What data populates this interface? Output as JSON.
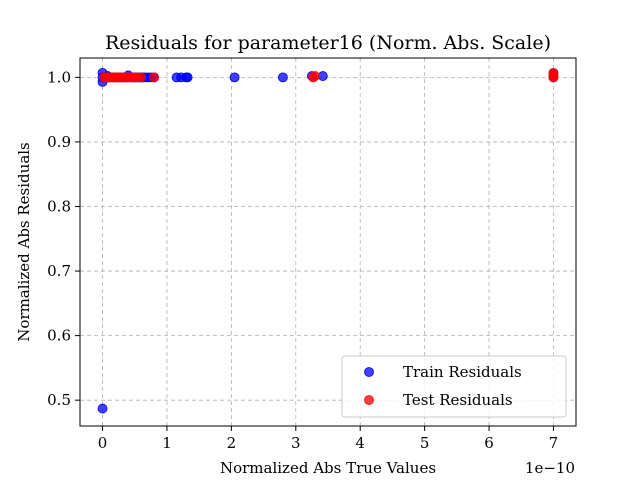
{
  "chart_data": {
    "type": "scatter",
    "title": "Residuals for parameter16 (Norm. Abs. Scale)",
    "xlabel": "Normalized Abs True Values",
    "ylabel": "Normalized Abs Residuals",
    "x_offset_text": "1e−10",
    "xlim": [
      -0.35,
      7.35
    ],
    "ylim": [
      0.46,
      1.03
    ],
    "x_ticks": [
      0,
      1,
      2,
      3,
      4,
      5,
      6,
      7
    ],
    "x_tick_labels": [
      "0",
      "1",
      "2",
      "3",
      "4",
      "5",
      "6",
      "7"
    ],
    "y_ticks": [
      0.5,
      0.6,
      0.7,
      0.8,
      0.9,
      1.0
    ],
    "y_tick_labels": [
      "0.5",
      "0.6",
      "0.7",
      "0.8",
      "0.9",
      "1.0"
    ],
    "grid": true,
    "legend_position": "lower-right",
    "series": [
      {
        "name": "Train Residuals",
        "color": "#0000ff",
        "x": [
          0.0,
          0.0,
          0.0,
          0.0,
          0.02,
          0.05,
          0.08,
          0.1,
          0.12,
          0.15,
          0.18,
          0.2,
          0.22,
          0.25,
          0.28,
          0.3,
          0.33,
          0.35,
          0.38,
          0.4,
          0.42,
          0.45,
          0.48,
          0.5,
          0.52,
          0.55,
          0.58,
          0.6,
          0.62,
          0.65,
          0.7,
          0.75,
          0.8,
          1.15,
          1.22,
          1.3,
          1.32,
          2.05,
          2.8,
          3.25,
          3.42,
          7.0,
          7.0,
          7.0
        ],
        "y": [
          0.487,
          0.993,
          1.0,
          1.007,
          1.0,
          1.0,
          1.002,
          1.0,
          1.0,
          1.0,
          1.0,
          1.0,
          1.0,
          1.0,
          1.0,
          1.0,
          1.0,
          1.0,
          1.0,
          1.003,
          1.0,
          1.0,
          1.0,
          1.0,
          1.0,
          1.0,
          1.0,
          1.0,
          1.0,
          1.0,
          1.0,
          1.0,
          1.0,
          1.0,
          1.0,
          1.0,
          1.0,
          1.0,
          1.0,
          1.002,
          1.002,
          1.0,
          1.003,
          1.006
        ]
      },
      {
        "name": "Test Residuals",
        "color": "#ff0000",
        "x": [
          0.02,
          0.05,
          0.08,
          0.1,
          0.12,
          0.15,
          0.18,
          0.2,
          0.23,
          0.25,
          0.28,
          0.3,
          0.35,
          0.4,
          0.45,
          0.5,
          0.55,
          0.6,
          0.8,
          3.27,
          3.3,
          7.0,
          7.0,
          7.0
        ],
        "y": [
          1.0,
          1.0,
          1.0,
          1.0,
          1.0,
          1.0,
          1.0,
          1.0,
          1.0,
          1.0,
          1.0,
          1.0,
          1.0,
          1.0,
          1.0,
          1.0,
          1.0,
          1.0,
          1.0,
          1.0,
          1.002,
          1.003,
          1.007,
          1.0
        ]
      }
    ]
  }
}
